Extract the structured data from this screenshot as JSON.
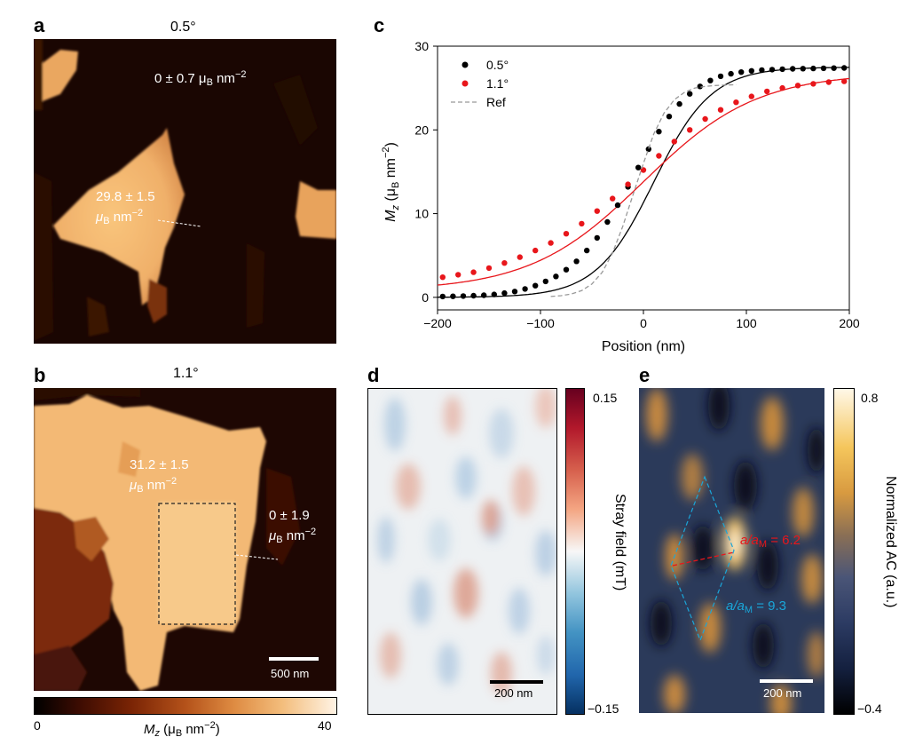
{
  "panels": {
    "a": {
      "letter": "a",
      "title": "0.5°",
      "label_outer": "0 ± 0.7 μ",
      "label_outer_sub": "B",
      "label_outer_unit": " nm",
      "label_outer_sup": "−2",
      "label_inner_line1": "29.8 ± 1.5",
      "label_inner_mu": "μ",
      "label_inner_sub": "B",
      "label_inner_unit": " nm",
      "label_inner_sup": "−2"
    },
    "b": {
      "letter": "b",
      "title": "1.1°",
      "label_inner_line1": "31.2 ± 1.5",
      "label_inner_mu": "μ",
      "label_inner_sub": "B",
      "label_inner_unit": " nm",
      "label_inner_sup": "−2",
      "label_outer_line1": "0 ± 1.9",
      "label_outer_mu": "μ",
      "label_outer_sub": "B",
      "label_outer_unit": " nm",
      "label_outer_sup": "−2",
      "scalebar": "500 nm",
      "colorbar_min": "0",
      "colorbar_max": "40",
      "colorbar_label_M": "M",
      "colorbar_label_z": "z",
      "colorbar_label_rest": " (μ",
      "colorbar_label_sub": "B",
      "colorbar_label_unit": " nm",
      "colorbar_label_sup": "−2",
      "colorbar_label_close": ")"
    },
    "d": {
      "letter": "d",
      "scalebar": "200 nm",
      "colorbar_max": "0.15",
      "colorbar_min": "−0.15",
      "colorbar_label": "Stray field (mT)"
    },
    "e": {
      "letter": "e",
      "scalebar": "200 nm",
      "colorbar_max": "0.8",
      "colorbar_min": "−0.4",
      "colorbar_label": "Normalized AC (a.u.)",
      "ann_red": "a/a",
      "ann_red_sub": "M",
      "ann_red_val": " = 6.2",
      "ann_blue": "a/a",
      "ann_blue_sub": "M",
      "ann_blue_val": " = 9.3",
      "red_color": "#e8161b",
      "blue_color": "#1aa6d9"
    }
  },
  "chart_data": {
    "type": "scatter",
    "panel_letter": "c",
    "xlabel": "Position (nm)",
    "ylabel_M": "M",
    "ylabel_z": "z",
    "ylabel_rest": " (μ",
    "ylabel_sub": "B",
    "ylabel_unit": " nm",
    "ylabel_sup": "−2",
    "ylabel_close": ")",
    "xlim": [
      -200,
      200
    ],
    "ylim": [
      -1.5,
      30
    ],
    "xticks": [
      -200,
      -100,
      0,
      100,
      200
    ],
    "xtick_labels": [
      "−200",
      "−100",
      "0",
      "100",
      "200"
    ],
    "yticks": [
      0,
      10,
      20,
      30
    ],
    "ytick_labels": [
      "0",
      "10",
      "20",
      "30"
    ],
    "legend": [
      "0.5°",
      "1.1°",
      "Ref"
    ],
    "series": [
      {
        "name": "0.5°",
        "color": "#000000",
        "x": [
          -195,
          -185,
          -175,
          -165,
          -155,
          -145,
          -135,
          -125,
          -115,
          -105,
          -95,
          -85,
          -75,
          -65,
          -55,
          -45,
          -35,
          -25,
          -15,
          -5,
          5,
          15,
          25,
          35,
          45,
          55,
          65,
          75,
          85,
          95,
          105,
          115,
          125,
          135,
          145,
          155,
          165,
          175,
          185,
          195
        ],
        "y": [
          0.1,
          0.12,
          0.15,
          0.2,
          0.25,
          0.35,
          0.5,
          0.7,
          1.0,
          1.4,
          1.9,
          2.5,
          3.3,
          4.3,
          5.6,
          7.1,
          9.0,
          11.0,
          13.2,
          15.5,
          17.7,
          19.8,
          21.6,
          23.1,
          24.3,
          25.2,
          25.9,
          26.4,
          26.7,
          26.9,
          27.05,
          27.15,
          27.2,
          27.25,
          27.3,
          27.32,
          27.34,
          27.36,
          27.38,
          27.4
        ]
      },
      {
        "name": "1.1°",
        "color": "#e8161b",
        "x": [
          -195,
          -180,
          -165,
          -150,
          -135,
          -120,
          -105,
          -90,
          -75,
          -60,
          -45,
          -30,
          -15,
          0,
          15,
          30,
          45,
          60,
          75,
          90,
          105,
          120,
          135,
          150,
          165,
          180,
          195
        ],
        "y": [
          2.4,
          2.7,
          3.0,
          3.5,
          4.1,
          4.8,
          5.6,
          6.5,
          7.6,
          8.8,
          10.3,
          11.8,
          13.5,
          15.2,
          16.9,
          18.6,
          20.0,
          21.3,
          22.4,
          23.3,
          24.0,
          24.6,
          25.0,
          25.3,
          25.5,
          25.7,
          25.8
        ]
      },
      {
        "name": "Ref",
        "color": "#999999",
        "style": "dashed",
        "x": [
          -90,
          -80,
          -70,
          -60,
          -50,
          -40,
          -30,
          -20,
          -10,
          0,
          10,
          20,
          30,
          40,
          50,
          60,
          70,
          80,
          90
        ],
        "y": [
          0.1,
          0.2,
          0.4,
          0.8,
          1.6,
          3.0,
          5.3,
          8.5,
          12.3,
          16.0,
          19.5,
          22.0,
          23.6,
          24.5,
          25.0,
          25.2,
          25.3,
          25.35,
          25.4
        ]
      }
    ],
    "fits": [
      {
        "name": "0.5° fit",
        "color": "#000000",
        "center": 10,
        "width": 28,
        "min": 0,
        "max": 27.5
      },
      {
        "name": "1.1° fit",
        "color": "#e8161b",
        "center": 0,
        "width": 55,
        "min": 0.8,
        "max": 26.8
      }
    ]
  }
}
